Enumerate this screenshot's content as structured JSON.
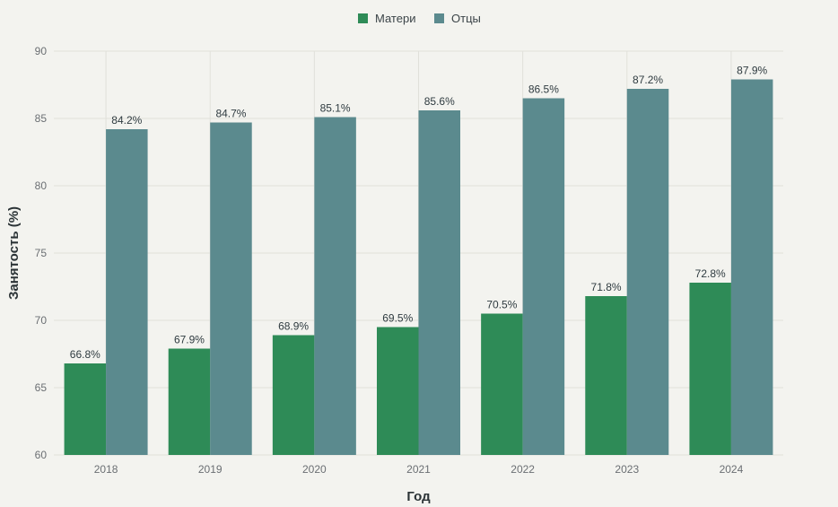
{
  "chart_data": {
    "type": "bar",
    "categories": [
      "2018",
      "2019",
      "2020",
      "2021",
      "2022",
      "2023",
      "2024"
    ],
    "series": [
      {
        "name": "Матери",
        "values": [
          66.8,
          67.9,
          68.9,
          69.5,
          70.5,
          71.8,
          72.8
        ],
        "color": "#2e8b57"
      },
      {
        "name": "Отцы",
        "values": [
          84.2,
          84.7,
          85.1,
          85.6,
          86.5,
          87.2,
          87.9
        ],
        "color": "#5b8a8e"
      }
    ],
    "data_labels": {
      "Матери": [
        "66.8%",
        "67.9%",
        "68.9%",
        "69.5%",
        "70.5%",
        "71.8%",
        "72.8%"
      ],
      "Отцы": [
        "84.2%",
        "84.7%",
        "85.1%",
        "85.6%",
        "86.5%",
        "87.2%",
        "87.9%"
      ]
    },
    "xlabel": "Год",
    "ylabel": "Занятость (%)",
    "ylim": [
      60,
      90
    ],
    "yticks": [
      "60",
      "65",
      "70",
      "75",
      "80",
      "85",
      "90"
    ],
    "grid": true,
    "legend_position": "top-center"
  }
}
